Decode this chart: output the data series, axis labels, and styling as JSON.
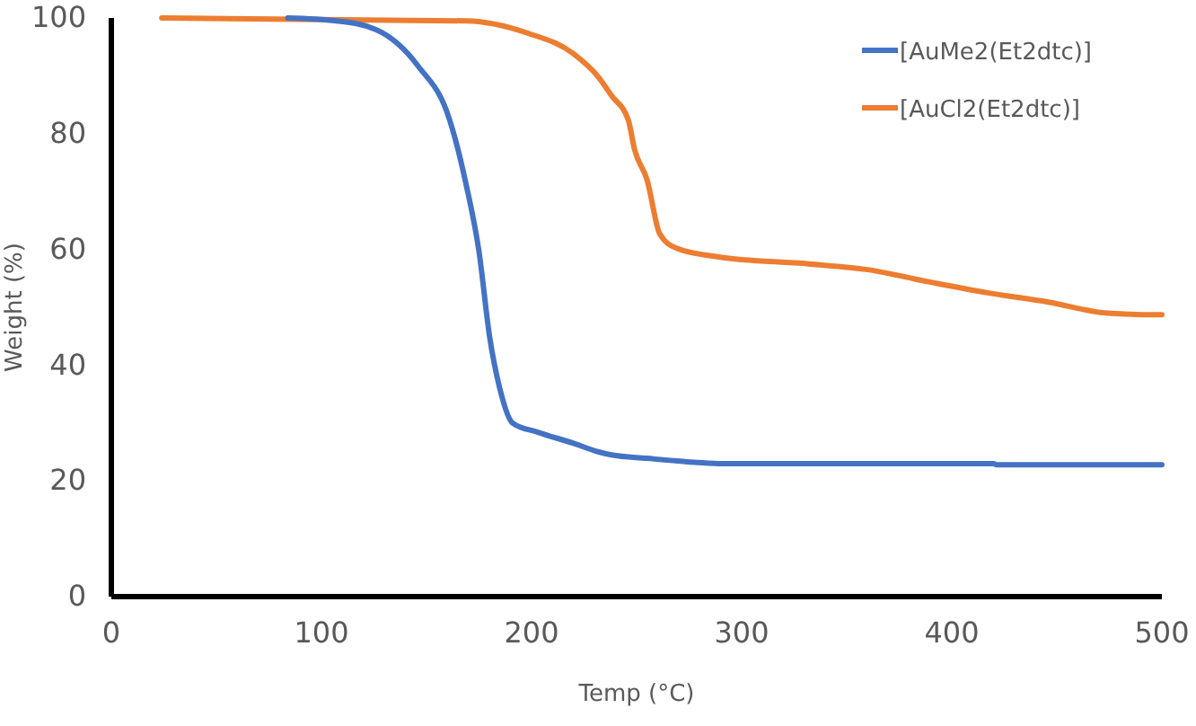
{
  "chart_data": {
    "type": "line",
    "xlabel": "Temp (°C)",
    "ylabel": "Weight (%)",
    "xlim": [
      0,
      500
    ],
    "xticks": [
      0,
      100,
      200,
      300,
      400,
      500
    ],
    "ylim": [
      0,
      100
    ],
    "yticks": [
      0,
      20,
      40,
      60,
      80,
      100
    ],
    "grid": false,
    "legend": "top right",
    "marker": "none",
    "line_style": "solid",
    "series": [
      {
        "name": "[AuMe2(Et2dtc)]",
        "color": "#4472c4",
        "x": [
          84,
          107,
          126,
          146,
          161,
          169,
          175,
          180,
          185,
          191,
          203,
          220,
          232,
          238,
          255,
          274,
          289,
          350,
          420,
          421,
          500
        ],
        "values": [
          100,
          99.5,
          98,
          91.7,
          82.4,
          71,
          59.6,
          45,
          35.8,
          30,
          28.4,
          26.5,
          25,
          24.5,
          23.9,
          23.3,
          23,
          23,
          23,
          22.8,
          22.8
        ]
      },
      {
        "name": "[AuCl2(Et2dtc)]",
        "color": "#ed7d31",
        "x": [
          24,
          169,
          198,
          220,
          232,
          238,
          246,
          249,
          255,
          261,
          269,
          289,
          332,
          360,
          389,
          417,
          446,
          474,
          498,
          500
        ],
        "values": [
          100,
          99.5,
          97.4,
          93.8,
          89.7,
          86.6,
          82.4,
          77.3,
          72,
          62.7,
          60.2,
          58.7,
          57.5,
          56.5,
          54.4,
          52.5,
          50.9,
          49,
          48.7,
          48.7
        ]
      }
    ]
  }
}
